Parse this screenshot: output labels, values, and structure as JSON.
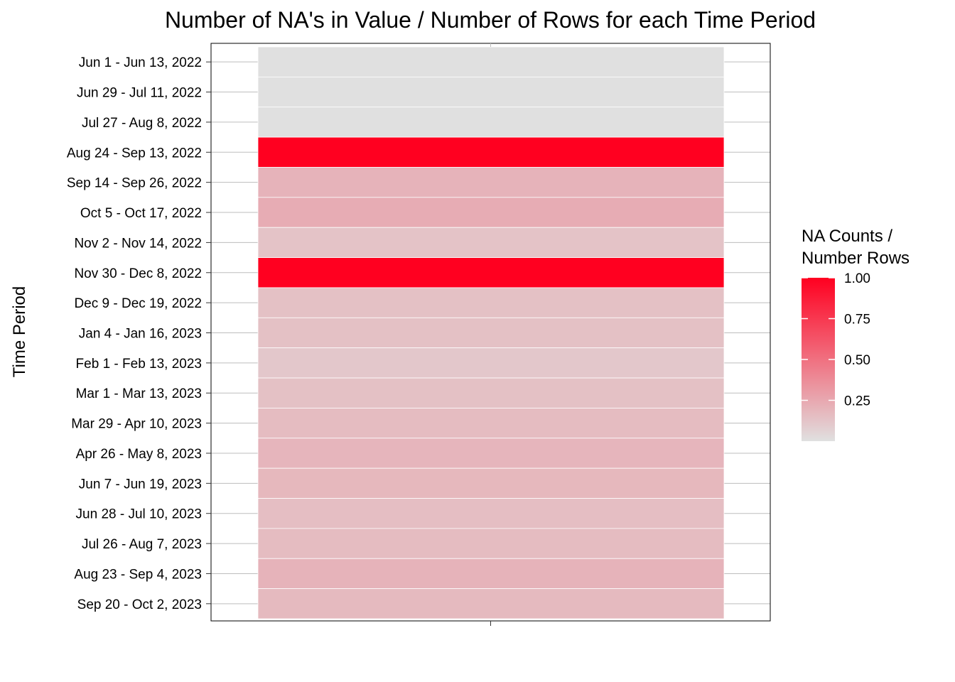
{
  "chart_data": {
    "type": "heatmap",
    "title": "Number of NA's in Value / Number of Rows for each Time Period",
    "xlabel": "",
    "ylabel": "Time Period",
    "categories": [
      "Jun 1 - Jun 13, 2022",
      "Jun 29 - Jul 11, 2022",
      "Jul 27 - Aug 8, 2022",
      "Aug 24 - Sep 13, 2022",
      "Sep 14 - Sep 26, 2022",
      "Oct 5 - Oct 17, 2022",
      "Nov 2 - Nov 14, 2022",
      "Nov 30 - Dec 8, 2022",
      "Dec 9 - Dec 19, 2022",
      "Jan 4 - Jan 16, 2023",
      "Feb 1 - Feb 13, 2023",
      "Mar 1 - Mar 13, 2023",
      "Mar 29 - Apr 10, 2023",
      "Apr 26 - May 8, 2023",
      "Jun 7 - Jun 19, 2023",
      "Jun 28 - Jul 10, 2023",
      "Jul 26 - Aug 7, 2023",
      "Aug 23 - Sep 4, 2023",
      "Sep 20 - Oct 2, 2023"
    ],
    "values": [
      0.0,
      0.0,
      0.0,
      1.0,
      0.2,
      0.23,
      0.13,
      1.0,
      0.14,
      0.14,
      0.11,
      0.14,
      0.16,
      0.19,
      0.18,
      0.15,
      0.16,
      0.2,
      0.17
    ],
    "legend": {
      "title_lines": [
        "NA Counts /",
        "Number Rows"
      ],
      "ticks": [
        1.0,
        0.75,
        0.5,
        0.25
      ],
      "tick_labels": [
        "1.00",
        "0.75",
        "0.50",
        "0.25"
      ],
      "range": [
        0,
        1.0
      ],
      "position": "right"
    },
    "colors": {
      "low": "#e0e0e0",
      "high": "#ff0020",
      "grid": "#bdbdbd",
      "panel_border": "#000000"
    },
    "grid": true
  }
}
